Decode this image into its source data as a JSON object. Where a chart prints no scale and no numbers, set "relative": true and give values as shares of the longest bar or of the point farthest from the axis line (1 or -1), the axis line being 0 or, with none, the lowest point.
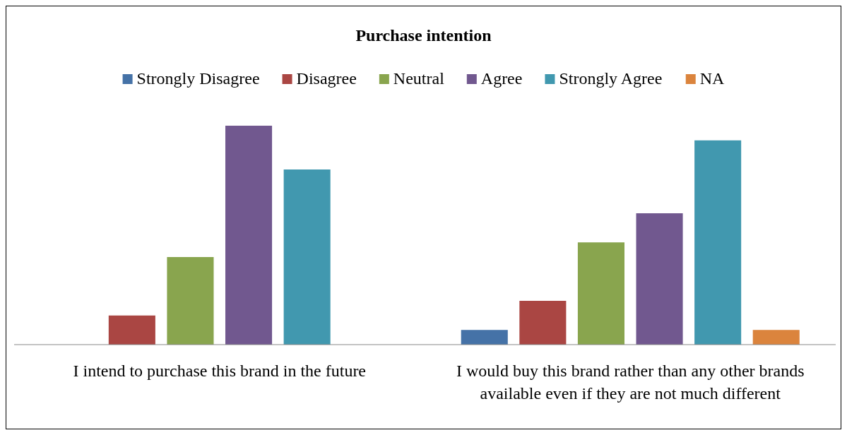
{
  "chart_data": {
    "type": "bar",
    "title": "Purchase intention",
    "relative": true,
    "legend": "top",
    "categories": [
      "I intend to purchase this brand in the future",
      "I would buy this brand rather than any other brands available even if they are not much different"
    ],
    "series": [
      {
        "name": "Strongly Disagree",
        "color": "#4572a7",
        "values": [
          0,
          0.067
        ]
      },
      {
        "name": "Disagree",
        "color": "#aa4643",
        "values": [
          0.133,
          0.2
        ]
      },
      {
        "name": "Neutral",
        "color": "#89a54e",
        "values": [
          0.4,
          0.467
        ]
      },
      {
        "name": "Agree",
        "color": "#71588f",
        "values": [
          1,
          0.6
        ]
      },
      {
        "name": "Strongly Agree",
        "color": "#4198af",
        "values": [
          0.8,
          0.933
        ]
      },
      {
        "name": "NA",
        "color": "#db843d",
        "values": [
          0,
          0.067
        ]
      }
    ]
  }
}
